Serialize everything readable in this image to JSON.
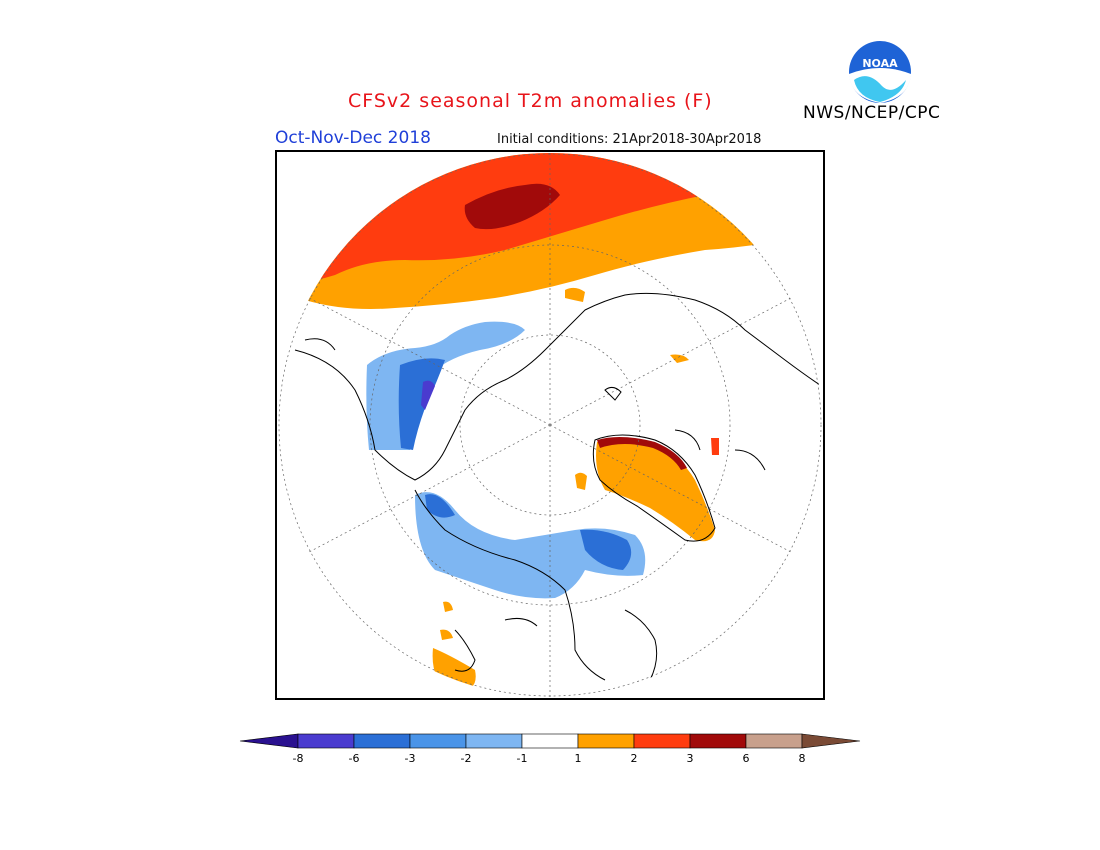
{
  "header": {
    "title": "CFSv2 seasonal T2m anomalies (F)",
    "organization": "NWS/NCEP/CPC",
    "period": "Oct-Nov-Dec 2018",
    "initial_conditions": "Initial conditions: 21Apr2018-30Apr2018",
    "logo_text": "NOAA"
  },
  "colorbar": {
    "ticks": [
      "-8",
      "-6",
      "-3",
      "-2",
      "-1",
      "1",
      "2",
      "3",
      "6",
      "8"
    ],
    "colors": [
      "#2a1190",
      "#4a3bcf",
      "#2b6fd6",
      "#4a94e8",
      "#7eb6f2",
      "#ffffff",
      "#ffa100",
      "#ff3c0f",
      "#a10a0a",
      "#c8a08c",
      "#7a4a35"
    ]
  },
  "map": {
    "projection": "north-polar-stereographic",
    "anomaly_colors": {
      "warm_1": "#ffa100",
      "warm_2": "#ff3c0f",
      "warm_3": "#a10a0a",
      "cool_1": "#7eb6f2",
      "cool_2": "#4a94e8",
      "cool_3": "#2b6fd6",
      "cool_4": "#4a3bcf"
    }
  }
}
